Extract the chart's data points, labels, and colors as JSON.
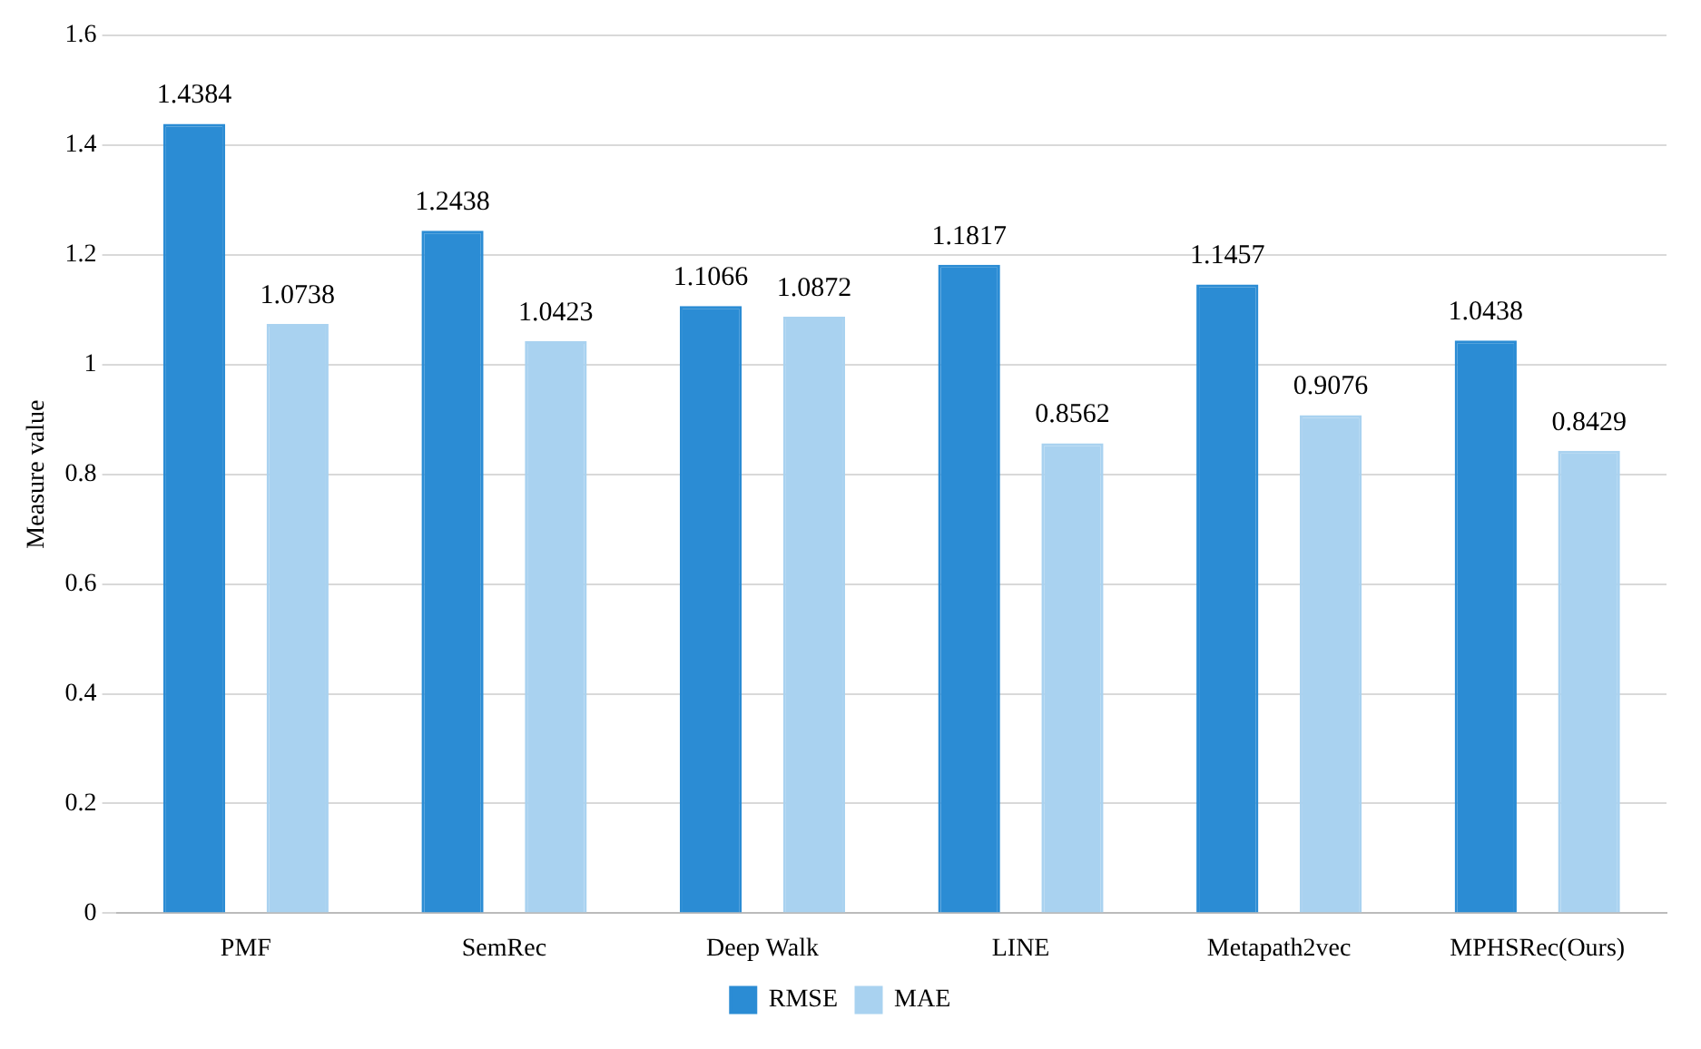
{
  "chart_data": {
    "type": "bar",
    "ylabel": "Measure value",
    "categories": [
      "PMF",
      "SemRec",
      "Deep Walk",
      "LINE",
      "Metapath2vec",
      "MPHSRec(Ours)"
    ],
    "series": [
      {
        "name": "RMSE",
        "color": "#2b8cd4",
        "values": [
          1.4384,
          1.2438,
          1.1066,
          1.1817,
          1.1457,
          1.0438
        ]
      },
      {
        "name": "MAE",
        "color": "#a9d2f0",
        "values": [
          1.0738,
          1.0423,
          1.0872,
          0.8562,
          0.9076,
          0.8429
        ]
      }
    ],
    "ylim": [
      0,
      1.6
    ],
    "yticks": [
      0,
      0.2,
      0.4,
      0.6,
      0.8,
      1,
      1.2,
      1.4,
      1.6
    ],
    "grid": "y",
    "legend": "bottom",
    "data_labels": true
  }
}
